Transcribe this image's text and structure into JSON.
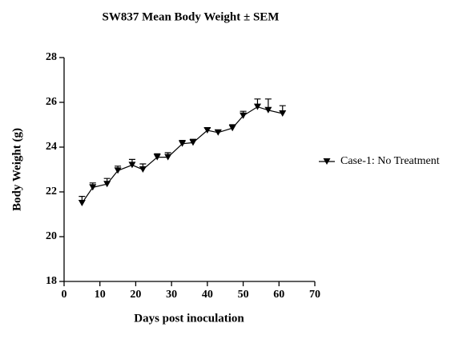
{
  "chart_data": {
    "type": "line",
    "title": "SW837 Mean Body Weight ± SEM",
    "x_label": "Days post inoculation",
    "y_label": "Body Weight (g)",
    "x": [
      5,
      8,
      12,
      15,
      19,
      22,
      26,
      29,
      33,
      36,
      40,
      43,
      47,
      50,
      54,
      57,
      61
    ],
    "series": [
      {
        "name": "Case-1: No Treatment",
        "color": "#000000",
        "values": [
          21.5,
          22.2,
          22.35,
          22.95,
          23.2,
          23.0,
          23.55,
          23.55,
          24.15,
          24.2,
          24.75,
          24.65,
          24.85,
          25.4,
          25.8,
          25.65,
          25.5
        ],
        "errors": [
          0.3,
          0.2,
          0.25,
          0.2,
          0.25,
          0.25,
          0.15,
          0.2,
          0.15,
          0.15,
          0.1,
          0.1,
          0.15,
          0.2,
          0.35,
          0.5,
          0.35
        ]
      }
    ],
    "xlim": [
      0,
      70
    ],
    "xticks": [
      0,
      10,
      20,
      30,
      40,
      50,
      60,
      70
    ],
    "ylim": [
      18,
      28
    ],
    "yticks": [
      18,
      20,
      22,
      24,
      26,
      28
    ],
    "legend": "right"
  }
}
